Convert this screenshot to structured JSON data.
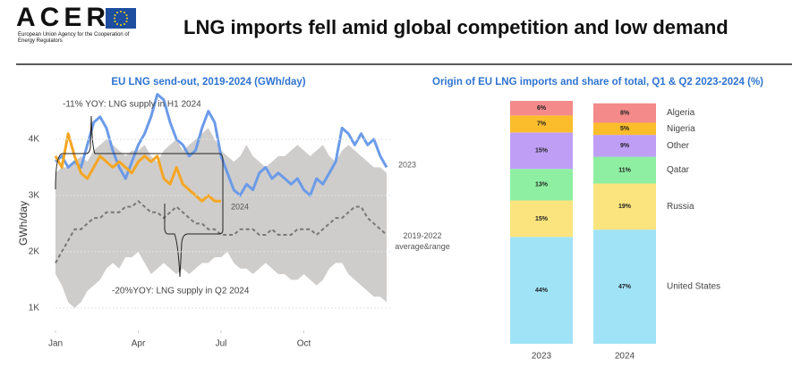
{
  "header": {
    "logo": "ACER",
    "agency": "European Union Agency for the Cooperation of Energy Regulators",
    "title": "LNG imports fell amid global competition and low demand"
  },
  "chart_data": [
    {
      "type": "line",
      "title": "EU LNG send-out, 2019-2024 (GWh/day)",
      "y_label": "GWh/day",
      "x": [
        0,
        1,
        2,
        3,
        4,
        5,
        6,
        7,
        8,
        9,
        10,
        11,
        12,
        13,
        14,
        15,
        16,
        17,
        18,
        19,
        20,
        21,
        22,
        23,
        24,
        25,
        26,
        27,
        28,
        29,
        30,
        31,
        32,
        33,
        34,
        35,
        36,
        37,
        38,
        39,
        40,
        41,
        42,
        43,
        44,
        45,
        46,
        47,
        48,
        49,
        50,
        51,
        52
      ],
      "xlim": [
        0,
        52
      ],
      "xticks": [
        {
          "value": 0,
          "label": "Jan"
        },
        {
          "value": 13,
          "label": "Apr"
        },
        {
          "value": 26,
          "label": "Jul"
        },
        {
          "value": 39,
          "label": "Oct"
        }
      ],
      "ylim": [
        600,
        5000
      ],
      "yticks": [
        {
          "value": 1000,
          "label": "1K"
        },
        {
          "value": 2000,
          "label": "2K"
        },
        {
          "value": 3000,
          "label": "3K"
        },
        {
          "value": 4000,
          "label": "4K"
        }
      ],
      "grid": true,
      "series": [
        {
          "name": "2023",
          "color": "#6b9be8",
          "values": [
            3600,
            3700,
            3500,
            3600,
            3500,
            3900,
            4300,
            4400,
            4200,
            3800,
            3500,
            3300,
            3600,
            3900,
            4100,
            4400,
            4800,
            4700,
            4300,
            4000,
            3900,
            3700,
            3800,
            4200,
            4500,
            4300,
            3700,
            3400,
            3100,
            3000,
            3200,
            3100,
            3400,
            3500,
            3300,
            3400,
            3300,
            3200,
            3300,
            3100,
            3000,
            3300,
            3200,
            3400,
            3600,
            4200,
            4100,
            3900,
            4100,
            3900,
            4000,
            3700,
            3500
          ]
        },
        {
          "name": "2024",
          "color": "#f5a623",
          "values": [
            3700,
            3500,
            4100,
            3700,
            3400,
            3300,
            3500,
            3700,
            3600,
            3500,
            3600,
            3500,
            3400,
            3600,
            3700,
            3600,
            3700,
            3300,
            3200,
            3500,
            3200,
            3100,
            3000,
            2900,
            3000,
            2900,
            2900,
            null,
            null,
            null,
            null,
            null,
            null,
            null,
            null,
            null,
            null,
            null,
            null,
            null,
            null,
            null,
            null,
            null,
            null,
            null,
            null,
            null,
            null,
            null,
            null,
            null,
            null
          ]
        },
        {
          "name": "2019-2022 average&range",
          "color": "#777777",
          "band_color": "#cfcdcb",
          "values": [
            1800,
            2000,
            2200,
            2400,
            2400,
            2500,
            2600,
            2600,
            2700,
            2700,
            2700,
            2800,
            2800,
            2900,
            2800,
            2700,
            2700,
            2600,
            2700,
            2800,
            2700,
            2600,
            2500,
            2500,
            2400,
            2400,
            2300,
            2300,
            2300,
            2400,
            2400,
            2400,
            2300,
            2300,
            2400,
            2300,
            2300,
            2300,
            2400,
            2400,
            2400,
            2300,
            2400,
            2500,
            2600,
            2600,
            2700,
            2800,
            2800,
            2600,
            2500,
            2400,
            2300
          ],
          "range_high": [
            3400,
            3500,
            3500,
            3600,
            3700,
            3600,
            3800,
            3900,
            4000,
            3900,
            3800,
            3700,
            3800,
            3800,
            3900,
            3700,
            3600,
            3800,
            3900,
            4000,
            3800,
            3900,
            4000,
            4100,
            4200,
            4000,
            3800,
            3700,
            3600,
            3700,
            3900,
            3700,
            3600,
            3500,
            3600,
            3700,
            3700,
            3800,
            3900,
            3800,
            3700,
            3800,
            3900,
            3700,
            3600,
            3800,
            3900,
            3800,
            3700,
            3600,
            3500,
            3500,
            3400
          ],
          "range_low": [
            1600,
            1400,
            1100,
            1000,
            1100,
            1300,
            1400,
            1500,
            1700,
            1800,
            1700,
            1900,
            1900,
            2000,
            1800,
            1600,
            1700,
            1800,
            1700,
            1600,
            1700,
            1600,
            1700,
            1800,
            1800,
            1900,
            1900,
            2000,
            1800,
            1700,
            1700,
            1600,
            1700,
            1800,
            1700,
            1600,
            1600,
            1500,
            1500,
            1600,
            1500,
            1400,
            1500,
            1700,
            1800,
            1800,
            1600,
            1500,
            1400,
            1300,
            1200,
            1200,
            1100
          ]
        }
      ],
      "annotations": [
        "-11% YOY: LNG supply in H1 2024",
        "-20%YOY: LNG supply in Q2 2024"
      ]
    },
    {
      "type": "stacked_bar",
      "title": "Origin of EU LNG imports and share of total, Q1 & Q2 2023-2024 (%)",
      "categories": [
        "2023",
        "2024"
      ],
      "ylim": [
        0,
        100
      ],
      "series": [
        {
          "name": "United States",
          "color": "#a0e3f7",
          "values": [
            44,
            47
          ],
          "value_labels": [
            "44%",
            "47%"
          ]
        },
        {
          "name": "Russia",
          "color": "#fbe47d",
          "values": [
            15,
            19
          ],
          "value_labels": [
            "15%",
            "19%"
          ]
        },
        {
          "name": "Qatar",
          "color": "#8eefa2",
          "values": [
            13,
            11
          ],
          "value_labels": [
            "13%",
            "11%"
          ]
        },
        {
          "name": "Other",
          "color": "#bf9ff6",
          "values": [
            15,
            9
          ],
          "value_labels": [
            "15%",
            "9%"
          ]
        },
        {
          "name": "Nigeria",
          "color": "#fbbd2c",
          "values": [
            7,
            5
          ],
          "value_labels": [
            "7%",
            "5%"
          ]
        },
        {
          "name": "Algeria",
          "color": "#f48a8a",
          "values": [
            6,
            8
          ],
          "value_labels": [
            "6%",
            "8%"
          ]
        }
      ]
    }
  ]
}
